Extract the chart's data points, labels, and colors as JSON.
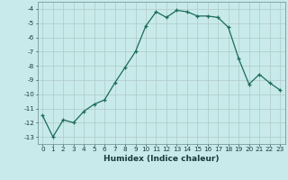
{
  "x": [
    0,
    1,
    2,
    3,
    4,
    5,
    6,
    7,
    8,
    9,
    10,
    11,
    12,
    13,
    14,
    15,
    16,
    17,
    18,
    19,
    20,
    21,
    22,
    23
  ],
  "y": [
    -11.5,
    -13,
    -11.8,
    -12,
    -11.2,
    -10.7,
    -10.4,
    -9.2,
    -8.1,
    -7.0,
    -5.2,
    -4.2,
    -4.6,
    -4.1,
    -4.2,
    -4.5,
    -4.5,
    -4.6,
    -5.3,
    -7.5,
    -9.3,
    -8.6,
    -9.2,
    -9.7
  ],
  "xlabel": "Humidex (Indice chaleur)",
  "bg_color": "#c8eaea",
  "grid_color": "#b0c8c8",
  "line_color": "#1a6b5a",
  "ylim": [
    -13.5,
    -3.5
  ],
  "xlim": [
    -0.5,
    23.5
  ],
  "yticks": [
    -13,
    -12,
    -11,
    -10,
    -9,
    -8,
    -7,
    -6,
    -5,
    -4
  ],
  "xticks": [
    0,
    1,
    2,
    3,
    4,
    5,
    6,
    7,
    8,
    9,
    10,
    11,
    12,
    13,
    14,
    15,
    16,
    17,
    18,
    19,
    20,
    21,
    22,
    23
  ],
  "xlabel_fontsize": 6.5,
  "tick_fontsize": 5.2,
  "linewidth": 0.9,
  "markersize": 3.5
}
